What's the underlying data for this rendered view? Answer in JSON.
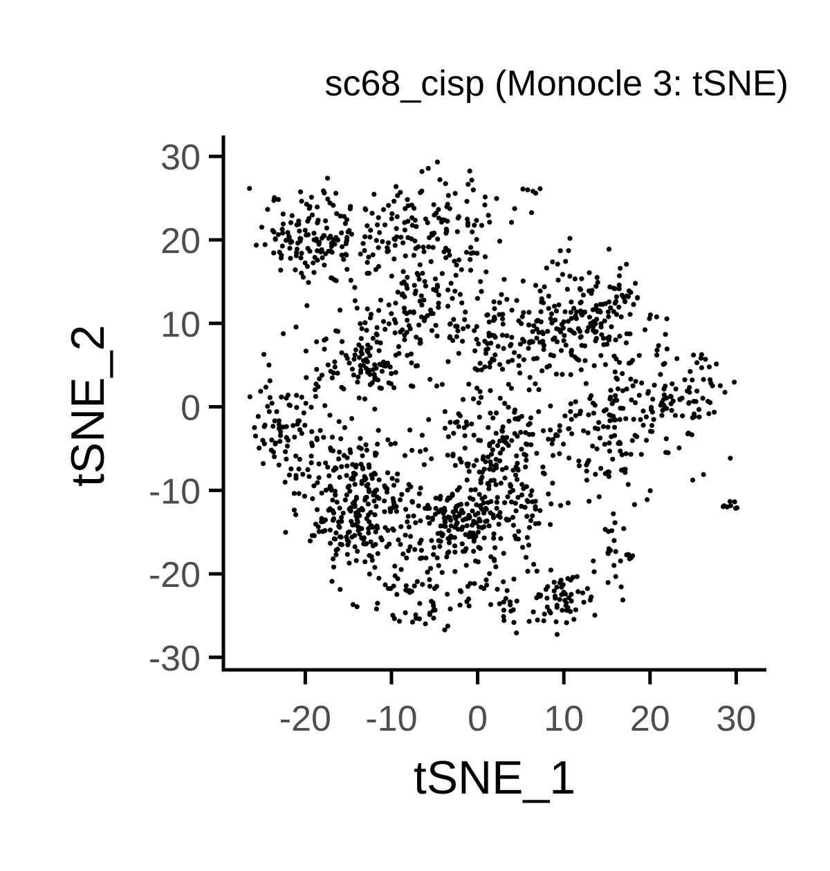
{
  "chart_data": {
    "type": "scatter",
    "title": "sc68_cisp (Monocle 3: tSNE)",
    "xlabel": "tSNE_1",
    "ylabel": "tSNE_2",
    "xlim": [
      -29.5,
      33.5
    ],
    "ylim": [
      -31.5,
      32.5
    ],
    "xticks": [
      -20,
      -10,
      0,
      10,
      20,
      30
    ],
    "yticks": [
      -30,
      -20,
      -10,
      0,
      10,
      20,
      30
    ],
    "xtick_labels": [
      "-20",
      "-10",
      "0",
      "10",
      "20",
      "30"
    ],
    "ytick_labels": [
      "-30",
      "-20",
      "-10",
      "0",
      "10",
      "20",
      "30"
    ],
    "grid": false,
    "legend": "none",
    "point_color": "#000000",
    "n_points": 1900,
    "clusters": [
      {
        "x": -19.0,
        "y": 20.0,
        "sx": 3.5,
        "sy": 2.6,
        "n": 150
      },
      {
        "x": -5.0,
        "y": 22.0,
        "sx": 4.5,
        "sy": 3.0,
        "n": 120
      },
      {
        "x": -14.5,
        "y": 7.0,
        "sx": 2.0,
        "sy": 2.2,
        "n": 60
      },
      {
        "x": -12.0,
        "y": 3.5,
        "sx": 1.5,
        "sy": 1.6,
        "n": 30
      },
      {
        "x": -7.0,
        "y": 12.0,
        "sx": 3.0,
        "sy": 3.5,
        "n": 100
      },
      {
        "x": 2.0,
        "y": 8.0,
        "sx": 3.5,
        "sy": 4.0,
        "n": 110
      },
      {
        "x": 10.0,
        "y": 10.0,
        "sx": 3.0,
        "sy": 3.0,
        "n": 110
      },
      {
        "x": 15.5,
        "y": 12.0,
        "sx": 2.5,
        "sy": 2.5,
        "n": 70
      },
      {
        "x": 21.0,
        "y": 2.0,
        "sx": 4.5,
        "sy": 3.0,
        "n": 120
      },
      {
        "x": 14.0,
        "y": -4.0,
        "sx": 4.0,
        "sy": 3.5,
        "n": 100
      },
      {
        "x": 3.0,
        "y": -5.0,
        "sx": 4.0,
        "sy": 4.0,
        "n": 120
      },
      {
        "x": -22.0,
        "y": -2.0,
        "sx": 2.5,
        "sy": 3.5,
        "n": 80
      },
      {
        "x": -15.0,
        "y": -8.0,
        "sx": 3.0,
        "sy": 3.5,
        "n": 100
      },
      {
        "x": -14.0,
        "y": -14.0,
        "sx": 3.0,
        "sy": 3.0,
        "n": 150
      },
      {
        "x": -3.0,
        "y": -14.0,
        "sx": 3.0,
        "sy": 2.5,
        "n": 140
      },
      {
        "x": 4.0,
        "y": -13.0,
        "sx": 2.5,
        "sy": 2.5,
        "n": 60
      },
      {
        "x": -8.0,
        "y": -21.0,
        "sx": 3.0,
        "sy": 2.0,
        "n": 40
      },
      {
        "x": 9.5,
        "y": -23.0,
        "sx": 2.2,
        "sy": 2.0,
        "n": 60
      },
      {
        "x": 2.0,
        "y": -22.0,
        "sx": 3.0,
        "sy": 2.0,
        "n": 35
      },
      {
        "x": -6.0,
        "y": -25.0,
        "sx": 1.5,
        "sy": 0.6,
        "n": 15
      },
      {
        "x": 16.0,
        "y": -18.0,
        "sx": 1.5,
        "sy": 2.0,
        "n": 20
      },
      {
        "x": 29.2,
        "y": -12.0,
        "sx": 0.5,
        "sy": 0.4,
        "n": 8
      },
      {
        "x": 6.5,
        "y": 26.0,
        "sx": 0.8,
        "sy": 0.3,
        "n": 5
      },
      {
        "x": -4.0,
        "y": -5.0,
        "sx": 4.0,
        "sy": 4.0,
        "n": 40
      }
    ]
  }
}
